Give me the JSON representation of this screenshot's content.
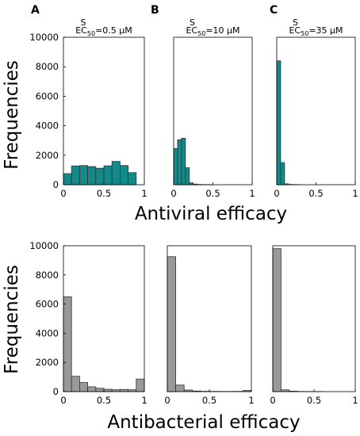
{
  "colors": {
    "top_bar": "#138a8a",
    "bottom_bar": "#999999",
    "bar_edge": "#333333"
  },
  "chart_data": [
    {
      "type": "bar",
      "panel": "A",
      "subtitle": {
        "prefix": "EC",
        "sub": "50",
        "sup": "S",
        "suffix": "=0.5 μM"
      },
      "bin_width": 0.1,
      "bin_starts": [
        0,
        0.1,
        0.2,
        0.3,
        0.4,
        0.5,
        0.6,
        0.7,
        0.8,
        0.9
      ],
      "values": [
        750,
        1270,
        1300,
        1230,
        1120,
        1280,
        1580,
        1300,
        820,
        0
      ],
      "xlim": [
        0,
        1
      ],
      "ylim": [
        0,
        10000
      ],
      "xticks": [
        "0",
        "0.5",
        "1"
      ],
      "yticks": [
        "0",
        "2000",
        "4000",
        "6000",
        "8000",
        "10000"
      ],
      "bar_color": "#138a8a"
    },
    {
      "type": "bar",
      "panel": "B",
      "subtitle": {
        "prefix": "EC",
        "sub": "50",
        "sup": "S",
        "suffix": "=10 μM"
      },
      "bin_width": 0.05,
      "bin_starts": [
        0,
        0.05,
        0.1,
        0.15,
        0.2,
        0.25,
        0.3,
        0.35,
        0.4,
        0.45,
        0.5,
        0.55,
        0.6,
        0.65,
        0.7,
        0.75,
        0.8,
        0.85,
        0.9,
        0.95
      ],
      "values": [
        2450,
        3050,
        3150,
        1150,
        130,
        40,
        20,
        10,
        5,
        5,
        0,
        0,
        0,
        0,
        0,
        0,
        0,
        0,
        0,
        0
      ],
      "xlim": [
        0,
        1
      ],
      "ylim": [
        0,
        10000
      ],
      "xticks": [
        "0",
        "0.5",
        "1"
      ],
      "bar_color": "#138a8a"
    },
    {
      "type": "bar",
      "panel": "C",
      "subtitle": {
        "prefix": "EC",
        "sub": "50",
        "sup": "S",
        "suffix": "=35 μM"
      },
      "bin_width": 0.05,
      "bin_starts": [
        0,
        0.05,
        0.1,
        0.15,
        0.2,
        0.25,
        0.3,
        0.35,
        0.4,
        0.45,
        0.5,
        0.55,
        0.6,
        0.65,
        0.7,
        0.75,
        0.8,
        0.85,
        0.9,
        0.95
      ],
      "values": [
        8400,
        1500,
        60,
        20,
        10,
        5,
        0,
        0,
        0,
        0,
        0,
        0,
        0,
        0,
        0,
        0,
        0,
        0,
        0,
        0
      ],
      "xlim": [
        0,
        1
      ],
      "ylim": [
        0,
        10000
      ],
      "xticks": [
        "0",
        "0.5",
        "1"
      ],
      "bar_color": "#138a8a"
    },
    {
      "type": "bar",
      "panel": "A-bottom",
      "bin_width": 0.1,
      "bin_starts": [
        0,
        0.1,
        0.2,
        0.3,
        0.4,
        0.5,
        0.6,
        0.7,
        0.8,
        0.9
      ],
      "values": [
        6500,
        1050,
        620,
        330,
        230,
        160,
        130,
        150,
        130,
        860
      ],
      "xlim": [
        0,
        1
      ],
      "ylim": [
        0,
        10000
      ],
      "xticks": [
        "0",
        "0.5",
        "1"
      ],
      "yticks": [
        "0",
        "2000",
        "4000",
        "6000",
        "8000",
        "10000"
      ],
      "bar_color": "#999999"
    },
    {
      "type": "bar",
      "panel": "B-bottom",
      "bin_width": 0.1,
      "bin_starts": [
        0,
        0.1,
        0.2,
        0.3,
        0.4,
        0.5,
        0.6,
        0.7,
        0.8,
        0.9
      ],
      "values": [
        9250,
        450,
        110,
        40,
        20,
        15,
        10,
        10,
        15,
        80
      ],
      "xlim": [
        0,
        1
      ],
      "ylim": [
        0,
        10000
      ],
      "xticks": [
        "0",
        "0.5",
        "1"
      ],
      "bar_color": "#999999"
    },
    {
      "type": "bar",
      "panel": "C-bottom",
      "bin_width": 0.1,
      "bin_starts": [
        0,
        0.1,
        0.2,
        0.3,
        0.4,
        0.5,
        0.6,
        0.7,
        0.8,
        0.9
      ],
      "values": [
        9800,
        120,
        30,
        10,
        5,
        5,
        0,
        0,
        0,
        0
      ],
      "xlim": [
        0,
        1
      ],
      "ylim": [
        0,
        10000
      ],
      "xticks": [
        "0",
        "0.5",
        "1"
      ],
      "bar_color": "#999999"
    }
  ],
  "labels": {
    "panel_a": "A",
    "panel_b": "B",
    "panel_c": "C",
    "top_ylabel": "Frequencies",
    "top_xlabel": "Antiviral efficacy",
    "bottom_ylabel": "Frequencies",
    "bottom_xlabel": "Antibacterial efficacy"
  }
}
